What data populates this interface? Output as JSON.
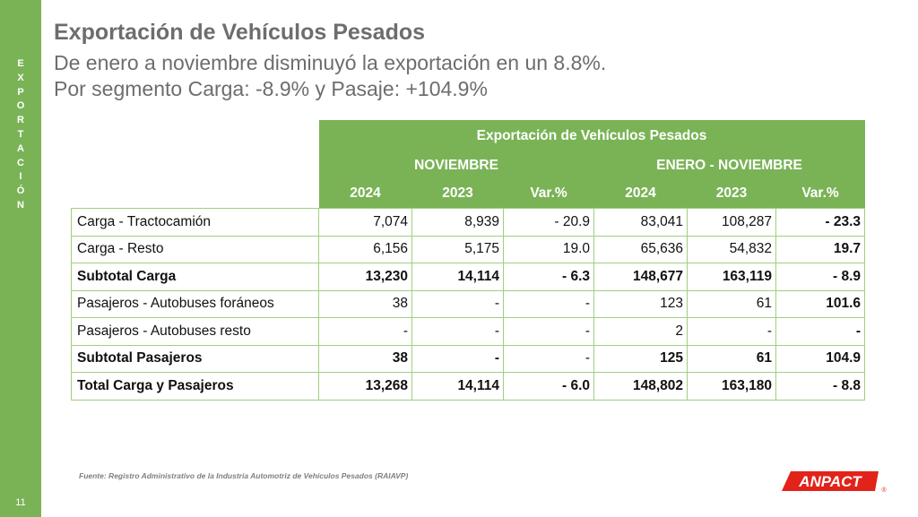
{
  "sidebar": {
    "section_letters": [
      "E",
      "X",
      "P",
      "O",
      "R",
      "T",
      "A",
      "C",
      "I",
      "Ó",
      "N"
    ],
    "page_number": "11"
  },
  "header": {
    "title": "Exportación de Vehículos Pesados",
    "subtitle_line1": "De enero a noviembre disminuyó la exportación en un 8.8%.",
    "subtitle_line2": "Por segmento Carga: -8.9% y Pasaje: +104.9%"
  },
  "table": {
    "title": "Exportación de Vehículos Pesados",
    "group_1": "NOVIEMBRE",
    "group_2": "ENERO - NOVIEMBRE",
    "columns": [
      "2024",
      "2023",
      "Var.%",
      "2024",
      "2023",
      "Var.%"
    ],
    "rows": [
      {
        "label": "Carga - Tractocamión",
        "values": [
          "7,074",
          "8,939",
          "- 20.9",
          "83,041",
          "108,287",
          "- 23.3"
        ]
      },
      {
        "label": "Carga - Resto",
        "values": [
          "6,156",
          "5,175",
          "19.0",
          "65,636",
          "54,832",
          "19.7"
        ]
      },
      {
        "label": "Subtotal Carga",
        "values": [
          "13,230",
          "14,114",
          "- 6.3",
          "148,677",
          "163,119",
          "- 8.9"
        ]
      },
      {
        "label": "Pasajeros - Autobuses foráneos",
        "values": [
          "38",
          "-",
          "-",
          "123",
          "61",
          "101.6"
        ]
      },
      {
        "label": "Pasajeros - Autobuses resto",
        "values": [
          "-",
          "-",
          "-",
          "2",
          "-",
          "-"
        ]
      },
      {
        "label": "Subtotal Pasajeros",
        "values": [
          "38",
          "-",
          "-",
          "125",
          "61",
          "104.9"
        ]
      },
      {
        "label": "Total Carga y Pasajeros",
        "values": [
          "13,268",
          "14,114",
          "- 6.0",
          "148,802",
          "163,180",
          "- 8.8"
        ]
      }
    ]
  },
  "footer": {
    "source": "Fuente: Registro Administrativo de la Industria Automotriz de Vehículos Pesados (RAIAVP)",
    "logo_text": "ANPACT",
    "logo_registered": "®"
  },
  "colors": {
    "accent_green": "#7ab356",
    "grid_green": "#9fd07f",
    "title_gray": "#6d6d6d",
    "logo_red": "#e2231a"
  }
}
